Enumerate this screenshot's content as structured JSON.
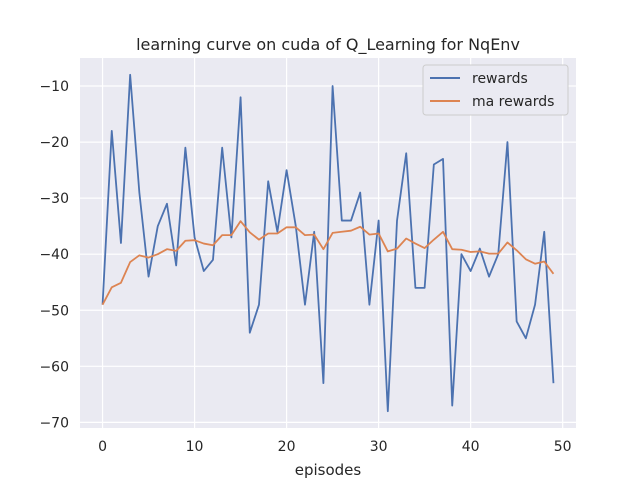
{
  "chart_data": {
    "type": "line",
    "title": "learning curve on cuda of Q_Learning for NqEnv",
    "xlabel": "episodes",
    "ylabel": "",
    "xlim": [
      -2.45,
      51.45
    ],
    "ylim": [
      -71,
      -5
    ],
    "xticks": [
      0,
      10,
      20,
      30,
      40,
      50
    ],
    "yticks": [
      -70,
      -60,
      -50,
      -40,
      -30,
      -20,
      -10
    ],
    "xtick_labels": [
      "0",
      "10",
      "20",
      "30",
      "40",
      "50"
    ],
    "ytick_labels": [
      "−70",
      "−60",
      "−50",
      "−40",
      "−30",
      "−20",
      "−10"
    ],
    "grid": true,
    "legend_position": "top-right",
    "background": "#eaeaf2",
    "grid_color": "#ffffff",
    "x": [
      0,
      1,
      2,
      3,
      4,
      5,
      6,
      7,
      8,
      9,
      10,
      11,
      12,
      13,
      14,
      15,
      16,
      17,
      18,
      19,
      20,
      21,
      22,
      23,
      24,
      25,
      26,
      27,
      28,
      29,
      30,
      31,
      32,
      33,
      34,
      35,
      36,
      37,
      38,
      39,
      40,
      41,
      42,
      43,
      44,
      45,
      46,
      47,
      48,
      49
    ],
    "series": [
      {
        "name": "rewards",
        "color": "#4c72b0",
        "values": [
          -49,
          -18,
          -38,
          -8,
          -29,
          -44,
          -35,
          -31,
          -42,
          -21,
          -37,
          -43,
          -41,
          -21,
          -37,
          -12,
          -54,
          -49,
          -27,
          -36,
          -25,
          -35,
          -49,
          -36,
          -63,
          -10,
          -34,
          -34,
          -29,
          -49,
          -34,
          -68,
          -34,
          -22,
          -46,
          -46,
          -24,
          -23,
          -67,
          -40,
          -43,
          -39,
          -44,
          -40,
          -20,
          -52,
          -55,
          -49,
          -36,
          -63
        ]
      },
      {
        "name": "ma rewards",
        "color": "#dd8452",
        "values": [
          -49,
          -45.9,
          -45.1,
          -41.4,
          -40.2,
          -40.6,
          -40.0,
          -39.1,
          -39.4,
          -37.6,
          -37.5,
          -38.1,
          -38.4,
          -36.6,
          -36.6,
          -34.1,
          -36.1,
          -37.4,
          -36.3,
          -36.3,
          -35.2,
          -35.2,
          -36.6,
          -36.5,
          -39.1,
          -36.2,
          -36.0,
          -35.8,
          -35.1,
          -36.5,
          -36.3,
          -39.5,
          -39.0,
          -37.2,
          -38.1,
          -38.9,
          -37.4,
          -36.0,
          -39.1,
          -39.2,
          -39.6,
          -39.5,
          -39.9,
          -39.9,
          -37.9,
          -39.3,
          -40.9,
          -41.7,
          -41.3,
          -43.5
        ]
      }
    ]
  }
}
